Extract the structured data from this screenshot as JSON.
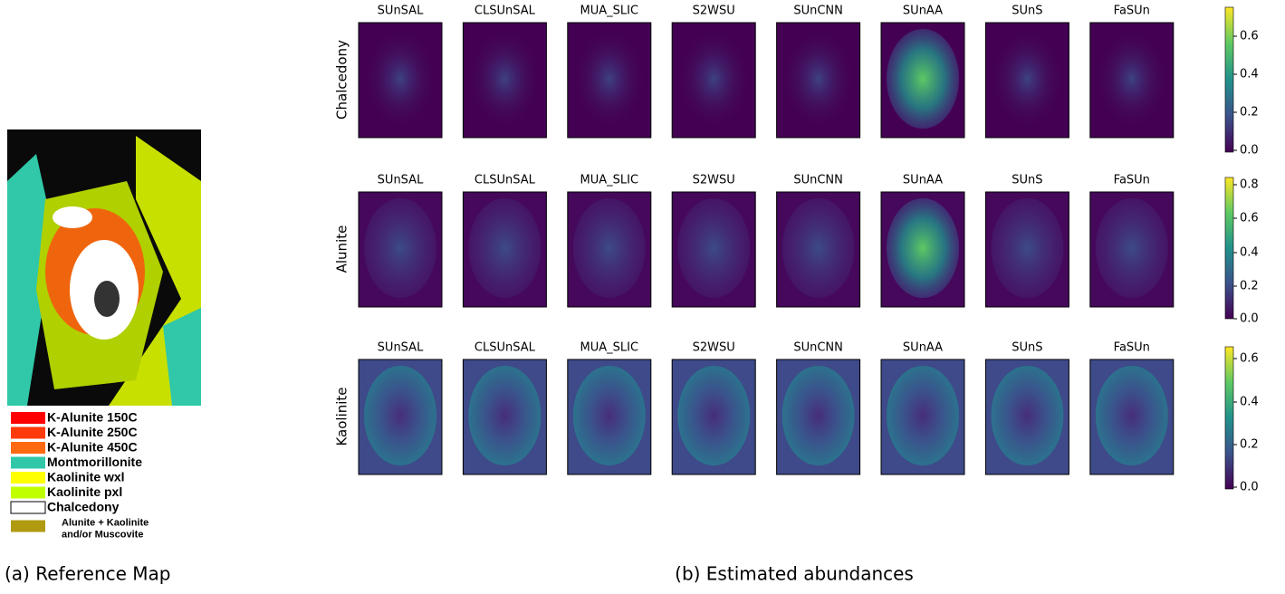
{
  "reference": {
    "caption": "(a) Reference Map",
    "legend": [
      {
        "lines": [
          "K-Alunite 150C"
        ],
        "color": "#ff0000"
      },
      {
        "lines": [
          "K-Alunite 250C"
        ],
        "color": "#ff3a0a"
      },
      {
        "lines": [
          "K-Alunite 450C"
        ],
        "color": "#ff6a10"
      },
      {
        "lines": [
          "Montmorillonite"
        ],
        "color": "#30c8a8"
      },
      {
        "lines": [
          "Kaolinite wxl"
        ],
        "color": "#ffff00"
      },
      {
        "lines": [
          "Kaolinite pxl"
        ],
        "color": "#c0ff00"
      },
      {
        "lines": [
          "Chalcedony"
        ],
        "color": "#ffffff"
      },
      {
        "lines": [
          "Alunite + Kaolinite",
          "and/or Muscovite"
        ],
        "color": "#b09a10"
      }
    ]
  },
  "abundances": {
    "caption": "(b) Estimated abundances",
    "rows": [
      {
        "material": "Chalcedony",
        "methods": [
          "SUnSAL",
          "CLSUnSAL",
          "MUA_SLIC",
          "S2WSU",
          "SUnCNN",
          "SUnAA",
          "SUnS",
          "FaSUn"
        ],
        "colorbar_ticks": [
          "0.0",
          "0.2",
          "0.4",
          "0.6"
        ]
      },
      {
        "material": "Alunite",
        "methods": [
          "SUnSAL",
          "CLSUnSAL",
          "MUA_SLIC",
          "S2WSU",
          "SUnCNN",
          "SUnAA",
          "SUnS",
          "FaSUn"
        ],
        "colorbar_ticks": [
          "0.0",
          "0.2",
          "0.4",
          "0.6",
          "0.8"
        ]
      },
      {
        "material": "Kaolinite",
        "methods": [
          "SUnSAL",
          "CLSUnSAL",
          "MUA_SLIC",
          "S2WSU",
          "SUnCNN",
          "SUnAA",
          "SUnS",
          "FaSUn"
        ],
        "colorbar_ticks": [
          "0.0",
          "0.2",
          "0.4",
          "0.6"
        ]
      }
    ]
  }
}
